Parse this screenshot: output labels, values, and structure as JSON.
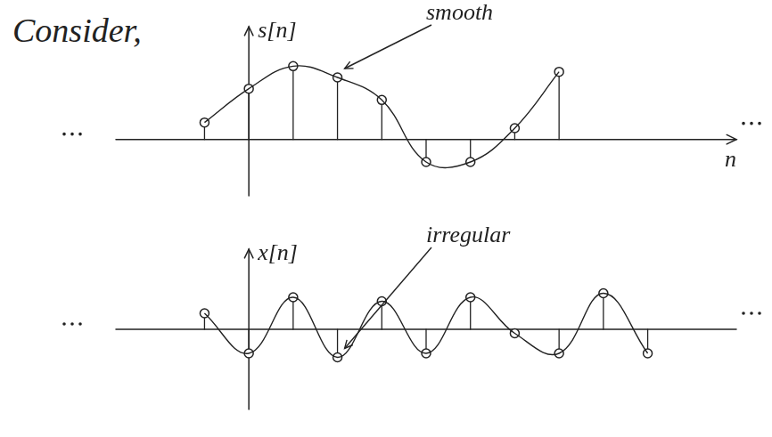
{
  "heading": "Consider,",
  "chart_data": [
    {
      "type": "stem",
      "y_label": "s[n]",
      "x_label": "n",
      "annotation": "smooth",
      "x": [
        -1,
        0,
        1,
        2,
        3,
        4,
        5,
        6,
        7
      ],
      "values": [
        0.3,
        0.9,
        1.3,
        1.1,
        0.7,
        -0.4,
        -0.4,
        0.2,
        1.2
      ],
      "xlim": [
        -3,
        11
      ],
      "ylim": [
        -1,
        2
      ],
      "tick_labels": false,
      "grid": false,
      "color": "#222222",
      "marker": "circle",
      "line_style": "smooth"
    },
    {
      "type": "stem",
      "y_label": "x[n]",
      "annotation": "irregular",
      "x": [
        -1,
        0,
        1,
        2,
        3,
        4,
        5,
        6,
        7,
        8,
        9
      ],
      "values": [
        0.2,
        -0.3,
        0.4,
        -0.35,
        0.35,
        -0.3,
        0.4,
        -0.05,
        -0.3,
        0.45,
        -0.3
      ],
      "xlim": [
        -3,
        11
      ],
      "ylim": [
        -1,
        1
      ],
      "tick_labels": false,
      "grid": false,
      "color": "#222222",
      "marker": "circle",
      "line_style": "smooth"
    }
  ]
}
